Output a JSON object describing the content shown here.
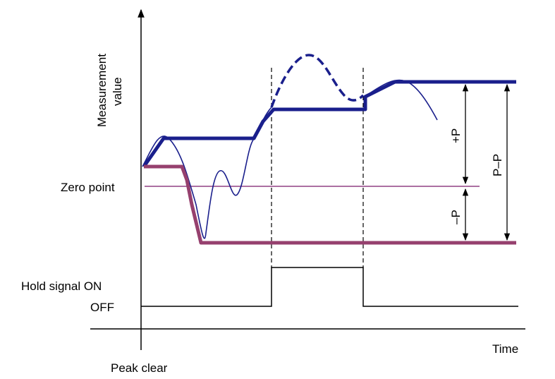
{
  "labels": {
    "y_axis_line1": "Measurement",
    "y_axis_line2": "value",
    "x_axis": "Time",
    "zero_point": "Zero point",
    "hold_signal_on": "Hold signal ON",
    "hold_signal_off": "OFF",
    "peak_clear": "Peak clear",
    "plus_p": "+P",
    "minus_p": "–P",
    "p_to_p": "P–P"
  },
  "colors": {
    "peak_hold": "#1a1f8c",
    "bottom_hold": "#96406e",
    "zero_line": "#7a1a6a",
    "axis": "#000000"
  }
}
